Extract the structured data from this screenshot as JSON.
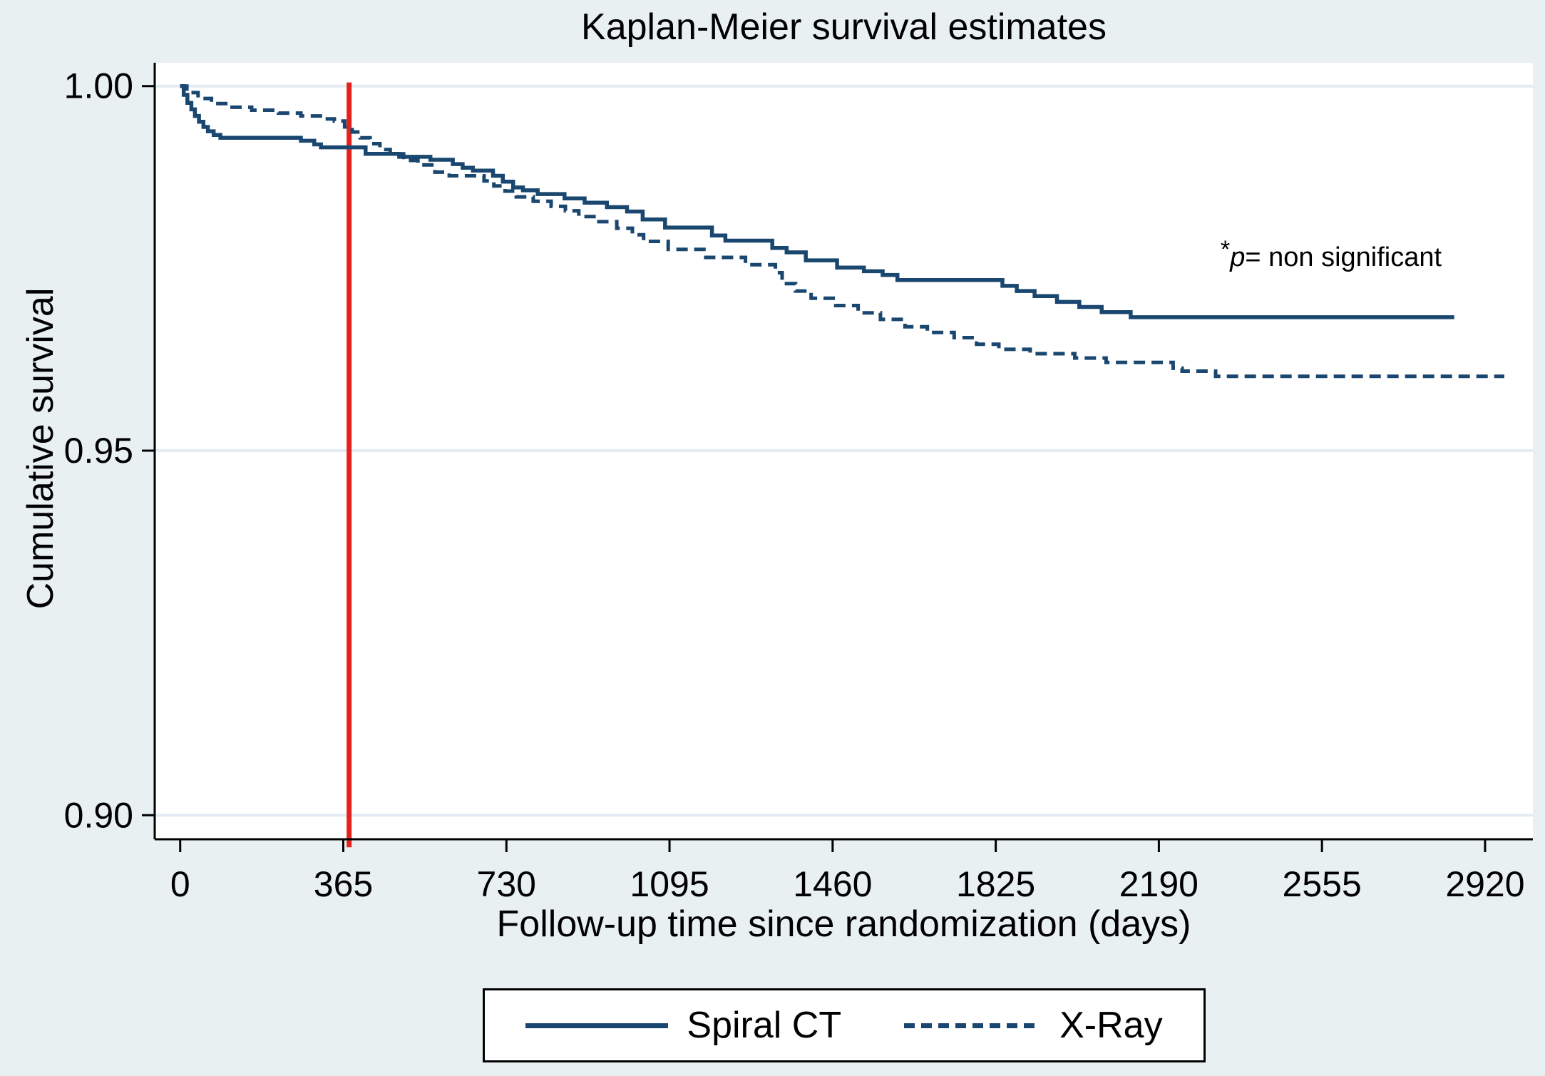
{
  "title": "Kaplan-Meier survival estimates",
  "annotation": {
    "asterisk": "*",
    "p_symbol": "p",
    "rest": "= non significant"
  },
  "legend": {
    "items": [
      {
        "label": "Spiral CT",
        "style": "solid"
      },
      {
        "label": "X-Ray",
        "style": "dashed"
      }
    ]
  },
  "colors": {
    "series_line": "#1a476f",
    "reference_line": "#e4221d",
    "figure_background": "#e9f0f2",
    "plot_background": "#ffffff",
    "gridline": "#e2ecf2",
    "axis": "#000000"
  },
  "chart_data": {
    "type": "line",
    "subtype": "kaplan-meier-step",
    "title": "Kaplan-Meier survival estimates",
    "xlabel": "Follow-up time since randomization (days)",
    "ylabel": "Cumulative survival",
    "xlim": [
      -57,
      3027
    ],
    "ylim": [
      0.8967,
      1.0032
    ],
    "x_ticks": [
      0,
      365,
      730,
      1095,
      1460,
      1825,
      2190,
      2555,
      2920
    ],
    "y_ticks": [
      1.0,
      0.95,
      0.9
    ],
    "y_tick_labels": [
      "1.00",
      "0.95",
      "0.90"
    ],
    "grid": "horizontal-gridlines-at-y-ticks",
    "legend_position": "bottom-center",
    "annotation_text": "*p= non significant",
    "reference_line": {
      "x": 378,
      "y_top": 1.0005,
      "y_bottom": 0.8956,
      "color": "#e4221d",
      "note": "vertical red line near 365 days"
    },
    "series": [
      {
        "name": "Spiral CT",
        "dash": "solid",
        "color": "#1a476f",
        "points": [
          [
            0,
            1.0
          ],
          [
            8,
            0.9988
          ],
          [
            16,
            0.9977
          ],
          [
            25,
            0.9968
          ],
          [
            33,
            0.9959
          ],
          [
            42,
            0.9951
          ],
          [
            52,
            0.9944
          ],
          [
            62,
            0.9938
          ],
          [
            75,
            0.9933
          ],
          [
            90,
            0.9929
          ],
          [
            270,
            0.9925
          ],
          [
            300,
            0.992
          ],
          [
            315,
            0.9916
          ],
          [
            415,
            0.9907
          ],
          [
            490,
            0.9903
          ],
          [
            560,
            0.9899
          ],
          [
            610,
            0.9893
          ],
          [
            632,
            0.9888
          ],
          [
            655,
            0.9884
          ],
          [
            700,
            0.9877
          ],
          [
            722,
            0.9869
          ],
          [
            745,
            0.9861
          ],
          [
            767,
            0.9857
          ],
          [
            800,
            0.9852
          ],
          [
            860,
            0.9846
          ],
          [
            905,
            0.984
          ],
          [
            955,
            0.9834
          ],
          [
            1000,
            0.9828
          ],
          [
            1035,
            0.9817
          ],
          [
            1085,
            0.9806
          ],
          [
            1190,
            0.9795
          ],
          [
            1220,
            0.9788
          ],
          [
            1325,
            0.9778
          ],
          [
            1357,
            0.9772
          ],
          [
            1400,
            0.9761
          ],
          [
            1470,
            0.9751
          ],
          [
            1530,
            0.9746
          ],
          [
            1572,
            0.9741
          ],
          [
            1605,
            0.9734
          ],
          [
            1840,
            0.9726
          ],
          [
            1872,
            0.9719
          ],
          [
            1912,
            0.9712
          ],
          [
            1962,
            0.9704
          ],
          [
            2012,
            0.9697
          ],
          [
            2062,
            0.969
          ],
          [
            2127,
            0.9683
          ],
          [
            2851,
            0.9683
          ]
        ]
      },
      {
        "name": "X-Ray",
        "dash": "dashed",
        "color": "#1a476f",
        "points": [
          [
            0,
            1.0
          ],
          [
            15,
            0.9991
          ],
          [
            40,
            0.9983
          ],
          [
            70,
            0.9976
          ],
          [
            110,
            0.9971
          ],
          [
            160,
            0.9967
          ],
          [
            220,
            0.9963
          ],
          [
            270,
            0.9959
          ],
          [
            320,
            0.9955
          ],
          [
            345,
            0.9952
          ],
          [
            368,
            0.9944
          ],
          [
            385,
            0.9937
          ],
          [
            403,
            0.9929
          ],
          [
            425,
            0.9921
          ],
          [
            447,
            0.9913
          ],
          [
            470,
            0.9907
          ],
          [
            500,
            0.9898
          ],
          [
            532,
            0.9892
          ],
          [
            570,
            0.9882
          ],
          [
            602,
            0.9877
          ],
          [
            680,
            0.987
          ],
          [
            702,
            0.9863
          ],
          [
            727,
            0.9856
          ],
          [
            752,
            0.9848
          ],
          [
            790,
            0.9842
          ],
          [
            830,
            0.9835
          ],
          [
            862,
            0.9829
          ],
          [
            892,
            0.9821
          ],
          [
            932,
            0.9814
          ],
          [
            977,
            0.9805
          ],
          [
            1012,
            0.9796
          ],
          [
            1037,
            0.9787
          ],
          [
            1092,
            0.9776
          ],
          [
            1172,
            0.9765
          ],
          [
            1265,
            0.9755
          ],
          [
            1332,
            0.9744
          ],
          [
            1347,
            0.9729
          ],
          [
            1377,
            0.9719
          ],
          [
            1412,
            0.9709
          ],
          [
            1467,
            0.9699
          ],
          [
            1517,
            0.9689
          ],
          [
            1567,
            0.968
          ],
          [
            1622,
            0.967
          ],
          [
            1672,
            0.9662
          ],
          [
            1732,
            0.9655
          ],
          [
            1782,
            0.9646
          ],
          [
            1832,
            0.9639
          ],
          [
            1902,
            0.9633
          ],
          [
            2002,
            0.9627
          ],
          [
            2072,
            0.9621
          ],
          [
            2222,
            0.9613
          ],
          [
            2242,
            0.9609
          ],
          [
            2317,
            0.9602
          ],
          [
            2963,
            0.9602
          ]
        ]
      }
    ]
  }
}
